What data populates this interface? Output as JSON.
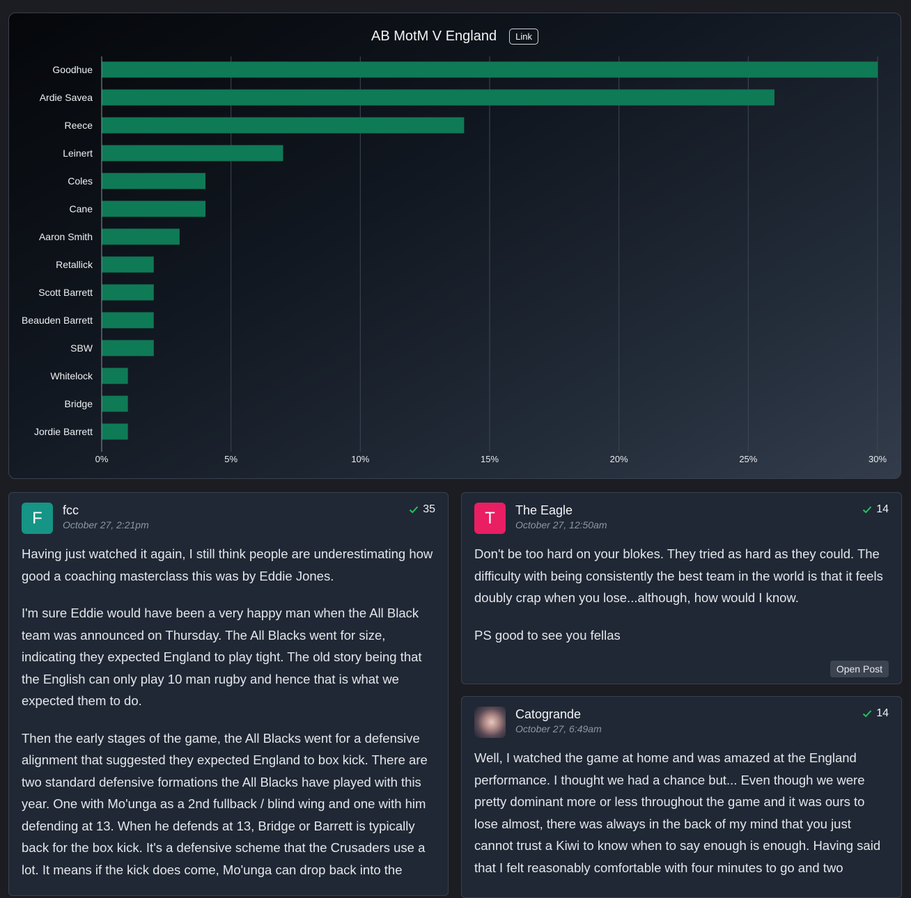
{
  "chart": {
    "link_label": "Link"
  },
  "chart_data": {
    "type": "bar",
    "orientation": "horizontal",
    "title": "AB MotM V England",
    "categories": [
      "Goodhue",
      "Ardie Savea",
      "Reece",
      "Leinert",
      "Coles",
      "Cane",
      "Aaron Smith",
      "Retallick",
      "Scott Barrett",
      "Beauden Barrett",
      "SBW",
      "Whitelock",
      "Bridge",
      "Jordie Barrett"
    ],
    "values": [
      30,
      26,
      14,
      7,
      4,
      4,
      3,
      2,
      2,
      2,
      2,
      1,
      1,
      1
    ],
    "xlim": [
      0,
      30
    ],
    "xticks": [
      "0%",
      "5%",
      "10%",
      "15%",
      "20%",
      "25%",
      "30%"
    ],
    "xtick_values": [
      0,
      5,
      10,
      15,
      20,
      25,
      30
    ],
    "grid": true,
    "bar_color": "#0f7a56"
  },
  "posts": [
    {
      "username": "fcc",
      "avatar_letter": "F",
      "avatar_color": "#169485",
      "date": "October 27, 2:21pm",
      "votes": "35",
      "paragraphs": [
        "Having just watched it again, I still think people are underestimating how good a coaching masterclass this was by Eddie Jones.",
        "I'm sure Eddie would have been a very happy man when the All Black team was announced on Thursday. The All Blacks went for size, indicating they expected England to play tight. The old story being that the English can only play 10 man rugby and hence that is what we expected them to do.",
        "Then the early stages of the game, the All Blacks went for a defensive alignment that suggested they expected England to box kick. There are two standard defensive formations the All Blacks have played with this year. One with Mo'unga as a 2nd fullback / blind wing and one with him defending at 13. When he defends at 13, Bridge or Barrett is typically back for the box kick. It's a defensive scheme that the Crusaders use a lot. It means if the kick does come, Mo'unga can drop back into the"
      ]
    },
    {
      "username": "The Eagle",
      "avatar_letter": "T",
      "avatar_color": "#e91e63",
      "date": "October 27, 12:50am",
      "votes": "14",
      "paragraphs": [
        "Don't be too hard on your blokes. They tried as hard as they could. The difficulty with being consistently the best team in the world is that it feels doubly crap when you lose...although, how would I know.",
        "PS good to see you fellas"
      ],
      "open_post_label": "Open Post"
    },
    {
      "username": "Catogrande",
      "avatar_letter": "",
      "date": "October 27, 6:49am",
      "votes": "14",
      "paragraphs": [
        "Well, I watched the game at home and was amazed at the England performance. I thought we had a chance but... Even though we were pretty dominant more or less throughout the game and it was ours to lose almost, there was always in the back of my mind that you just cannot trust a Kiwi to know when to say enough is enough. Having said that I felt reasonably comfortable with four minutes to go and two"
      ]
    }
  ],
  "colors": {
    "vote_check": "#22c55e"
  }
}
